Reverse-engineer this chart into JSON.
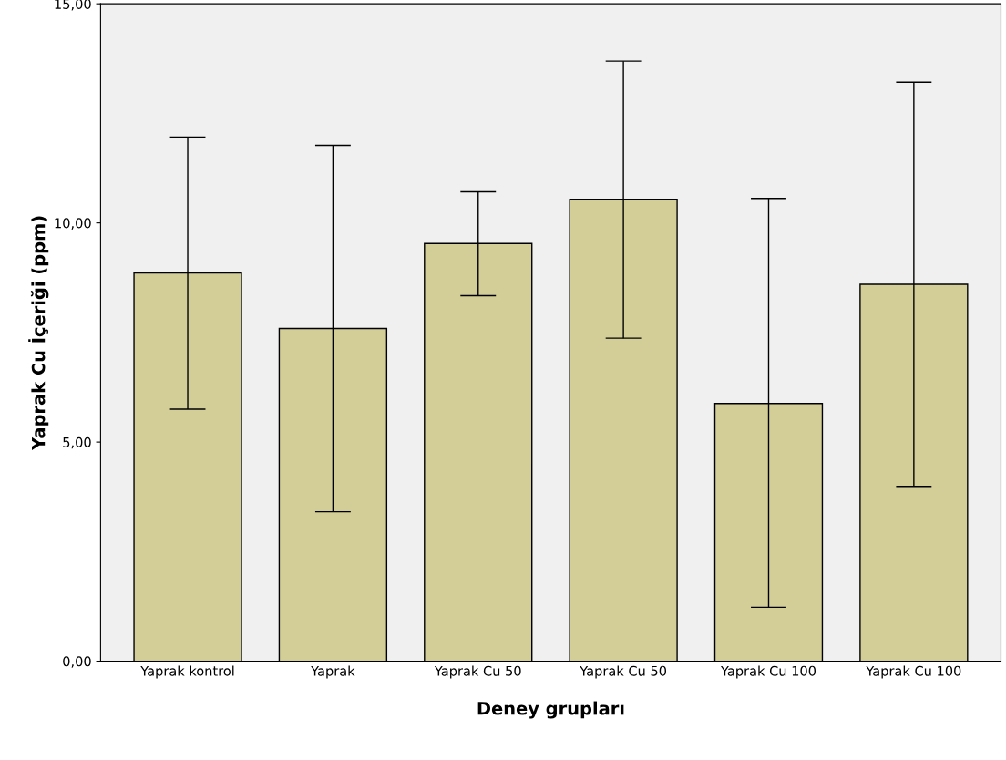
{
  "chart_data": {
    "type": "bar",
    "xlabel": "Deney grupları",
    "ylabel": "Yaprak Cu İçeriği (ppm)",
    "categories": [
      "Yaprak kontrol",
      "Yaprak",
      "Yaprak Cu 50",
      "Yaprak Cu 50",
      "Yaprak Cu 100",
      "Yaprak Cu 100"
    ],
    "values": [
      8.86,
      7.59,
      9.53,
      10.54,
      5.88,
      8.6
    ],
    "errors": [
      [
        5.75,
        11.96
      ],
      [
        3.41,
        11.77
      ],
      [
        8.34,
        10.71
      ],
      [
        7.37,
        13.69
      ],
      [
        1.23,
        10.56
      ],
      [
        3.99,
        13.21
      ]
    ],
    "color": "#d3cd97",
    "ylim": [
      0,
      15
    ],
    "yticks": [
      {
        "value": 0,
        "label": "0,00"
      },
      {
        "value": 5,
        "label": "5,00"
      },
      {
        "value": 10,
        "label": "10,00"
      },
      {
        "value": 15,
        "label": "15,00"
      }
    ],
    "grid": false,
    "legend": false
  }
}
